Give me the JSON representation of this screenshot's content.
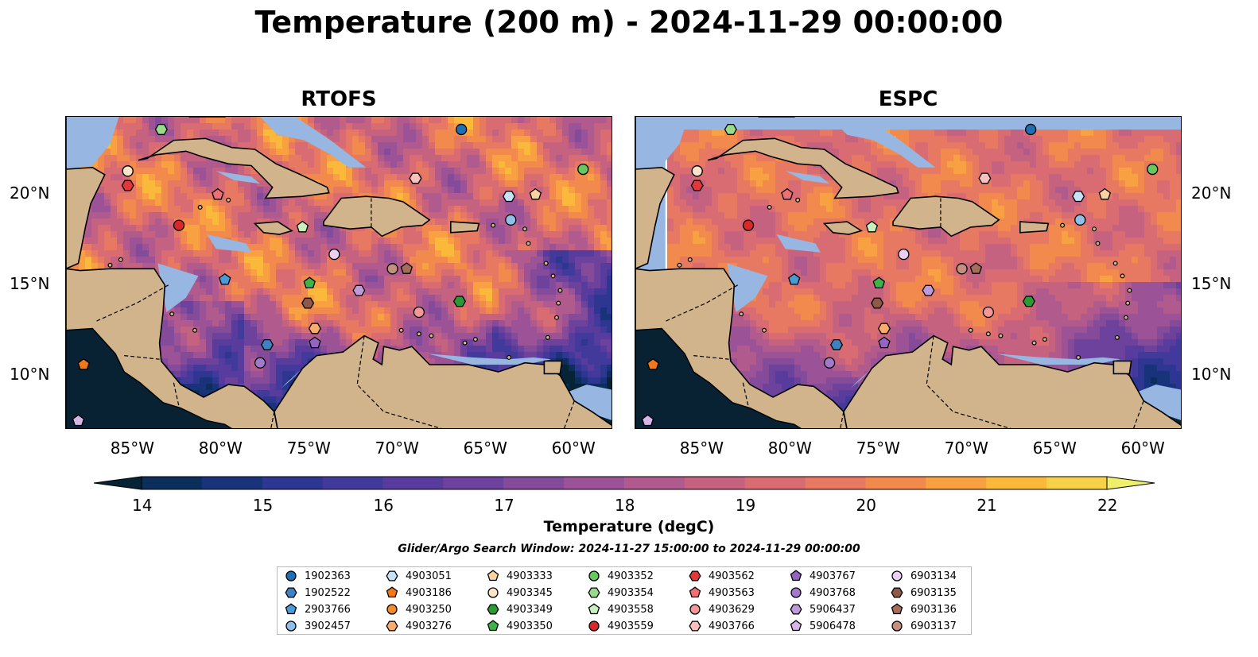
{
  "title": "Temperature (200 m) - 2024-11-29 00:00:00",
  "panels": [
    {
      "title": "RTOFS"
    },
    {
      "title": "ESPC"
    }
  ],
  "colors": {
    "land": "#d2b48c",
    "shallow_water": "#97b6e1",
    "deep_cold": "#082234"
  },
  "map": {
    "lon_ticks": [
      "85°W",
      "80°W",
      "75°W",
      "70°W",
      "65°W",
      "60°W"
    ],
    "lat_ticks": [
      "20°N",
      "15°N",
      "10°N"
    ]
  },
  "chart_data": {
    "type": "heatmap",
    "variable": "Temperature (degC)",
    "colorbar": {
      "min": 14,
      "max": 22,
      "step": 0.5,
      "extend": "both",
      "ticks": [
        14,
        15,
        16,
        17,
        18,
        19,
        20,
        21,
        22
      ],
      "tick_labels": [
        "14",
        "15",
        "16",
        "17",
        "18",
        "19",
        "20",
        "21",
        "22"
      ],
      "label": "Temperature (degC)",
      "colors": [
        "#072437",
        "#0b2f5a",
        "#19337a",
        "#2d3791",
        "#423a9a",
        "#573c9d",
        "#6d429d",
        "#854b9b",
        "#9b5296",
        "#b15a8d",
        "#c56280",
        "#d86c72",
        "#e77963",
        "#f28a4d",
        "#f9a042",
        "#fbb93b",
        "#f7d14a",
        "#eef06a"
      ]
    },
    "search_window": "Glider/Argo Search Window: 2024-11-27 15:00:00 to 2024-11-29 00:00:00",
    "platforms": [
      {
        "id": "1902363",
        "marker": "circle",
        "color": "#1f6fb4",
        "lon": -66.6,
        "lat": 23.6
      },
      {
        "id": "1902522",
        "marker": "hexagon",
        "color": "#3f82c2",
        "lon": -77.6,
        "lat": 11.7
      },
      {
        "id": "2903766",
        "marker": "pentagon",
        "color": "#4a9ad8",
        "lon": -80.0,
        "lat": 15.3
      },
      {
        "id": "3902457",
        "marker": "circle",
        "color": "#8fc0ea",
        "lon": -63.8,
        "lat": 18.6
      },
      {
        "id": "4903051",
        "marker": "hexagon",
        "color": "#c6e2f6",
        "lon": -63.9,
        "lat": 19.9
      },
      {
        "id": "4903186",
        "marker": "pentagon",
        "color": "#f07818",
        "lon": -88.0,
        "lat": 10.6
      },
      {
        "id": "4903250",
        "marker": "circle",
        "color": "#f58a2c",
        "lon": -85.5,
        "lat": 21.3
      },
      {
        "id": "4903276",
        "marker": "hexagon",
        "color": "#f8ad6c",
        "lon": -74.9,
        "lat": 12.6
      },
      {
        "id": "4903333",
        "marker": "pentagon",
        "color": "#fbd3a3",
        "lon": -62.4,
        "lat": 20.0
      },
      {
        "id": "4903345",
        "marker": "circle",
        "color": "#fde3c8",
        "lon": -85.5,
        "lat": 21.3
      },
      {
        "id": "4903349",
        "marker": "hexagon",
        "color": "#2a9a34",
        "lon": -66.7,
        "lat": 14.1
      },
      {
        "id": "4903350",
        "marker": "pentagon",
        "color": "#3fb34a",
        "lon": -75.2,
        "lat": 15.1
      },
      {
        "id": "4903352",
        "marker": "circle",
        "color": "#67c761",
        "lon": -59.7,
        "lat": 21.4
      },
      {
        "id": "4903354",
        "marker": "hexagon",
        "color": "#99db8c",
        "lon": -83.6,
        "lat": 23.6
      },
      {
        "id": "4903558",
        "marker": "pentagon",
        "color": "#c8f0be",
        "lon": -75.6,
        "lat": 18.2
      },
      {
        "id": "4903559",
        "marker": "circle",
        "color": "#d62a2a",
        "lon": -82.6,
        "lat": 18.3
      },
      {
        "id": "4903562",
        "marker": "hexagon",
        "color": "#e0393c",
        "lon": -85.5,
        "lat": 20.5
      },
      {
        "id": "4903563",
        "marker": "pentagon",
        "color": "#ef6f74",
        "lon": -80.4,
        "lat": 20.0
      },
      {
        "id": "4903629",
        "marker": "circle",
        "color": "#f39797",
        "lon": -69.0,
        "lat": 13.5
      },
      {
        "id": "4903766",
        "marker": "hexagon",
        "color": "#f9c0bd",
        "lon": -69.2,
        "lat": 20.9
      },
      {
        "id": "4903767",
        "marker": "pentagon",
        "color": "#9365c2",
        "lon": -74.9,
        "lat": 11.8
      },
      {
        "id": "4903768",
        "marker": "circle",
        "color": "#a37acb",
        "lon": -78.0,
        "lat": 10.7
      },
      {
        "id": "5906437",
        "marker": "hexagon",
        "color": "#bd9ad8",
        "lon": -72.4,
        "lat": 14.7
      },
      {
        "id": "5906478",
        "marker": "pentagon",
        "color": "#d6b6e6",
        "lon": -88.3,
        "lat": 7.5
      },
      {
        "id": "6903134",
        "marker": "circle",
        "color": "#ecd0f4",
        "lon": -73.8,
        "lat": 16.7
      },
      {
        "id": "6903135",
        "marker": "hexagon",
        "color": "#8d5a49",
        "lon": -75.3,
        "lat": 14.0
      },
      {
        "id": "6903136",
        "marker": "pentagon",
        "color": "#a46d5c",
        "lon": -69.7,
        "lat": 15.9
      },
      {
        "id": "6903137",
        "marker": "circle",
        "color": "#c48f7e",
        "lon": -70.5,
        "lat": 15.9
      }
    ],
    "extent": {
      "lon_min": -89,
      "lon_max": -58,
      "lat_min": 7,
      "lat_max": 24.3
    }
  }
}
